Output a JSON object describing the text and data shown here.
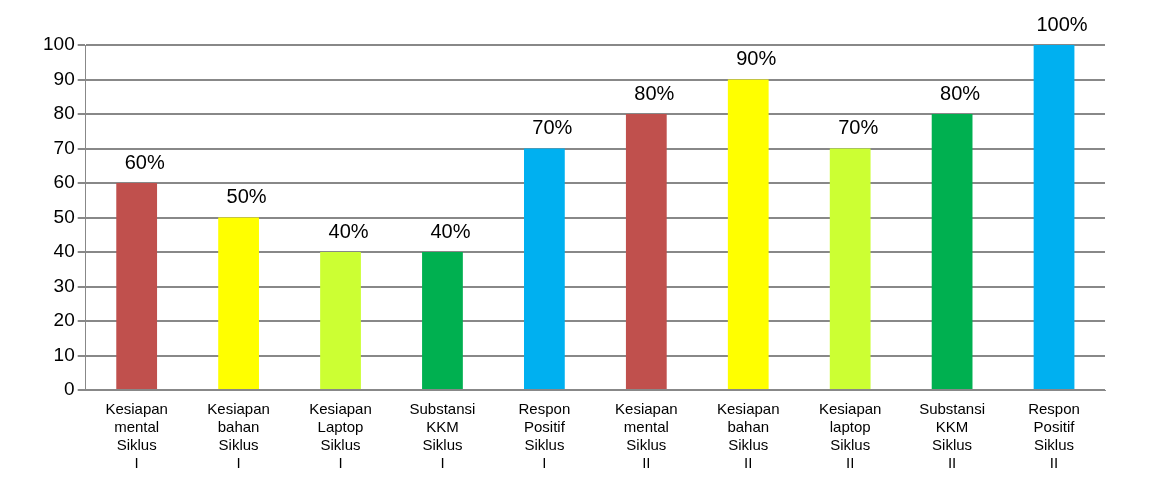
{
  "chart_data": {
    "type": "bar",
    "categories": [
      "Kesiapan mental Siklus I",
      "Kesiapan bahan Siklus I",
      "Kesiapan Laptop Siklus I",
      "Substansi KKM Siklus I",
      "Respon Positif Siklus I",
      "Kesiapan mental Siklus II",
      "Kesiapan bahan Siklus II",
      "Kesiapan laptop Siklus II",
      "Substansi KKM Siklus II",
      "Respon Positif Siklus II"
    ],
    "values": [
      60,
      50,
      40,
      40,
      70,
      80,
      90,
      70,
      80,
      100
    ],
    "colors": [
      "#c0504d",
      "#ffff00",
      "#ccff33",
      "#00b050",
      "#00b0f0",
      "#c0504d",
      "#ffff00",
      "#ccff33",
      "#00b050",
      "#00b0f0"
    ],
    "value_labels": [
      "60%",
      "50%",
      "40%",
      "40%",
      "70%",
      "80%",
      "90%",
      "70%",
      "80%",
      "100%"
    ],
    "ylim": [
      0,
      100
    ],
    "yticks": [
      0,
      10,
      20,
      30,
      40,
      50,
      60,
      70,
      80,
      90,
      100
    ],
    "grid": "y",
    "legend": false
  }
}
